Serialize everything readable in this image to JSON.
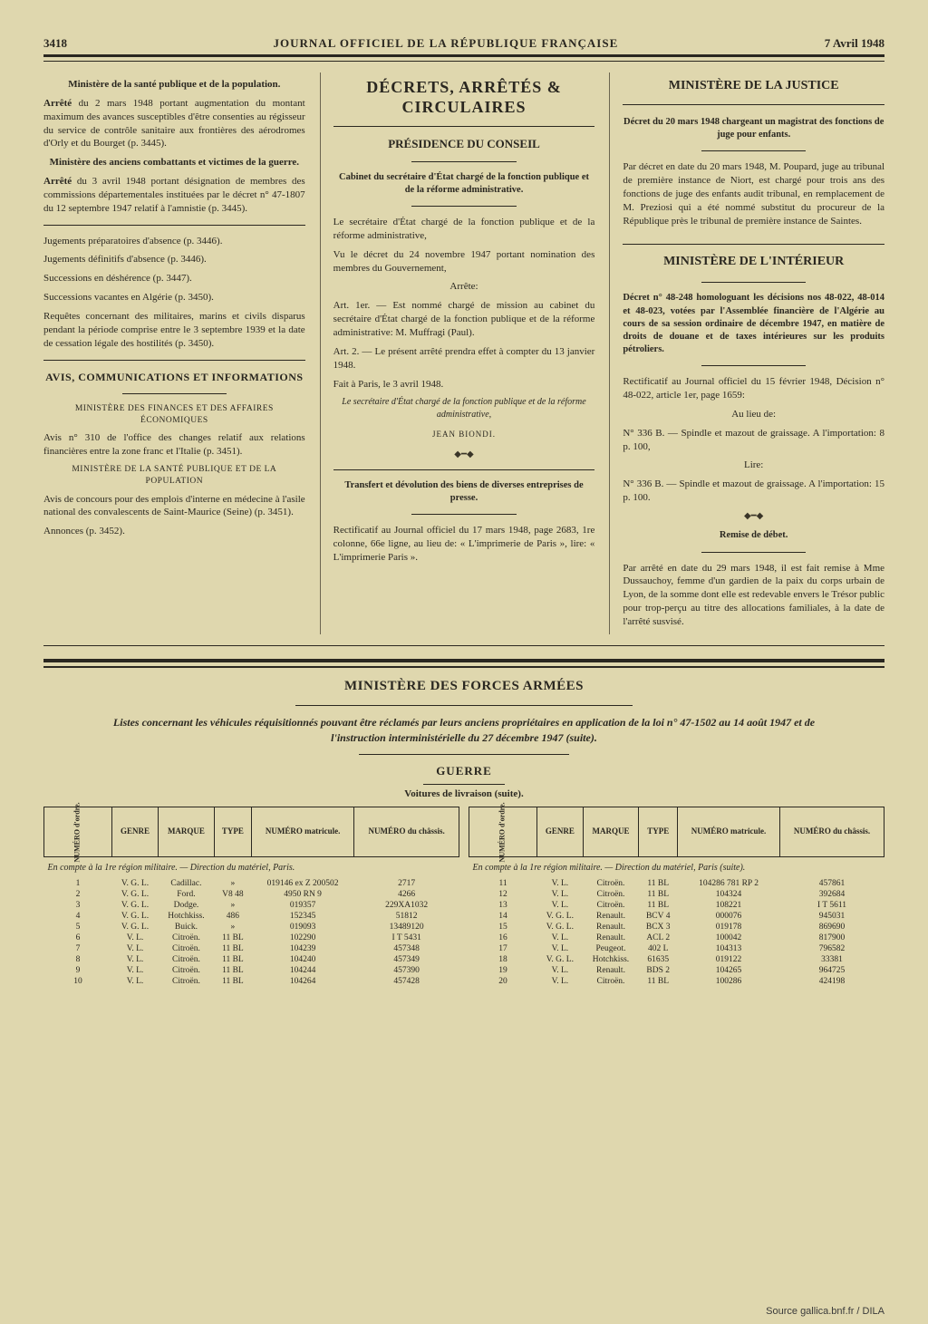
{
  "header": {
    "page_number": "3418",
    "journal_title": "JOURNAL OFFICIEL DE LA RÉPUBLIQUE FRANÇAISE",
    "date": "7 Avril 1948"
  },
  "col1": {
    "min1_title": "Ministère de la santé publique et de la population.",
    "arr1": "Arrêté du 2 mars 1948 portant augmentation du montant maximum des avances susceptibles d'être consenties au régisseur du service de contrôle sanitaire aux frontières des aérodromes d'Orly et du Bourget (p. 3445).",
    "min2_title": "Ministère des anciens combattants et victimes de la guerre.",
    "arr2": "Arrêté du 3 avril 1948 portant désignation de membres des commissions départementales instituées par le décret n° 47-1807 du 12 septembre 1947 relatif à l'amnistie (p. 3445).",
    "jug1": "Jugements préparatoires d'absence (p. 3446).",
    "jug2": "Jugements définitifs d'absence (p. 3446).",
    "succ1": "Successions en déshérence (p. 3447).",
    "succ2": "Successions vacantes en Algérie (p. 3450).",
    "req": "Requêtes concernant des militaires, marins et civils disparus pendant la période comprise entre le 3 septembre 1939 et la date de cessation légale des hostilités (p. 3450).",
    "avis_heading": "AVIS, COMMUNICATIONS ET INFORMATIONS",
    "min_fin": "MINISTÈRE DES FINANCES ET DES AFFAIRES ÉCONOMIQUES",
    "avis1": "Avis n° 310 de l'office des changes relatif aux relations financières entre la zone franc et l'Italie (p. 3451).",
    "min_sante": "MINISTÈRE DE LA SANTÉ PUBLIQUE ET DE LA POPULATION",
    "avis2": "Avis de concours pour des emplois d'interne en médecine à l'asile national des convalescents de Saint-Maurice (Seine) (p. 3451).",
    "annonces": "Annonces (p. 3452)."
  },
  "col2": {
    "big_title": "DÉCRETS, ARRÊTÉS & CIRCULAIRES",
    "pres_title": "PRÉSIDENCE DU CONSEIL",
    "cabinet": "Cabinet du secrétaire d'État chargé de la fonction publique et de la réforme administrative.",
    "p1": "Le secrétaire d'État chargé de la fonction publique et de la réforme administrative,",
    "p2": "Vu le décret du 24 novembre 1947 portant nomination des membres du Gouvernement,",
    "arrete": "Arrête:",
    "art1": "Art. 1er. — Est nommé chargé de mission au cabinet du secrétaire d'État chargé de la fonction publique et de la réforme administrative: M. Muffragi (Paul).",
    "art2": "Art. 2. — Le présent arrêté prendra effet à compter du 13 janvier 1948.",
    "fait": "Fait à Paris, le 3 avril 1948.",
    "sig": "Le secrétaire d'État chargé de la fonction publique et de la réforme administrative,",
    "sig_name": "JEAN BIONDI.",
    "transfert_title": "Transfert et dévolution des biens de diverses entreprises de presse.",
    "rectif": "Rectificatif au Journal officiel du 17 mars 1948, page 2683, 1re colonne, 66e ligne, au lieu de: « L'imprimerie de Paris », lire: « L'imprimerie Paris »."
  },
  "col3": {
    "justice_title": "MINISTÈRE DE LA JUSTICE",
    "decret_justice": "Décret du 20 mars 1948 chargeant un magistrat des fonctions de juge pour enfants.",
    "justice_para": "Par décret en date du 20 mars 1948, M. Poupard, juge au tribunal de première instance de Niort, est chargé pour trois ans des fonctions de juge des enfants audit tribunal, en remplacement de M. Preziosi qui a été nommé substitut du procureur de la République près le tribunal de première instance de Saintes.",
    "interieur_title": "MINISTÈRE DE L'INTÉRIEUR",
    "decret_int": "Décret n° 48-248 homologuant les décisions nos 48-022, 48-014 et 48-023, votées par l'Assemblée financière de l'Algérie au cours de sa session ordinaire de décembre 1947, en matière de droits de douane et de taxes intérieures sur les produits pétroliers.",
    "rectif_int": "Rectificatif au Journal officiel du 15 février 1948, Décision n° 48-022, article 1er, page 1659:",
    "au_lieu": "Au lieu de:",
    "n336a": "N° 336 B. — Spindle et mazout de graissage. A l'importation: 8 p. 100,",
    "lire": "Lire:",
    "n336b": "N° 336 B. — Spindle et mazout de graissage. A l'importation: 15 p. 100.",
    "remise_title": "Remise de débet.",
    "remise_para": "Par arrêté en date du 29 mars 1948, il est fait remise à Mme Dussauchoy, femme d'un gardien de la paix du corps urbain de Lyon, de la somme dont elle est redevable envers le Trésor public pour trop-perçu au titre des allocations familiales, à la date de l'arrêté susvisé."
  },
  "forces": {
    "title": "MINISTÈRE DES FORCES ARMÉES",
    "intro": "Listes concernant les véhicules réquisitionnés pouvant être réclamés par leurs anciens propriétaires en application de la loi n° 47-1502 au 14 août 1947 et de l'instruction interministérielle du 27 décembre 1947 (suite).",
    "guerre": "GUERRE",
    "voitures": "Voitures de livraison (suite)."
  },
  "table": {
    "headers": {
      "numero_ordre": "NUMÉRO d'ordre.",
      "genre": "GENRE",
      "marque": "MARQUE",
      "type": "TYPE",
      "numero_matricule": "NUMÉRO matricule.",
      "numero_chassis": "NUMÉRO du châssis."
    },
    "region_left": "En compte à la 1re région militaire. — Direction du matériel, Paris.",
    "region_right": "En compte à la 1re région militaire. — Direction du matériel, Paris (suite).",
    "rows_left": [
      [
        "1",
        "V. G. L.",
        "Cadillac.",
        "»",
        "019146 ex Z 200502",
        "2717"
      ],
      [
        "2",
        "V. G. L.",
        "Ford.",
        "V8 48",
        "4950 RN 9",
        "4266"
      ],
      [
        "3",
        "V. G. L.",
        "Dodge.",
        "»",
        "019357",
        "229XA1032"
      ],
      [
        "4",
        "V. G. L.",
        "Hotchkiss.",
        "486",
        "152345",
        "51812"
      ],
      [
        "5",
        "V. G. L.",
        "Buick.",
        "»",
        "019093",
        "13489120"
      ],
      [
        "6",
        "V. L.",
        "Citroën.",
        "11 BL",
        "102290",
        "I T 5431"
      ],
      [
        "7",
        "V. L.",
        "Citroën.",
        "11 BL",
        "104239",
        "457348"
      ],
      [
        "8",
        "V. L.",
        "Citroën.",
        "11 BL",
        "104240",
        "457349"
      ],
      [
        "9",
        "V. L.",
        "Citroën.",
        "11 BL",
        "104244",
        "457390"
      ],
      [
        "10",
        "V. L.",
        "Citroën.",
        "11 BL",
        "104264",
        "457428"
      ]
    ],
    "rows_right": [
      [
        "11",
        "V. L.",
        "Citroën.",
        "11 BL",
        "104286 781 RP 2",
        "457861"
      ],
      [
        "12",
        "V. L.",
        "Citroën.",
        "11 BL",
        "104324",
        "392684"
      ],
      [
        "13",
        "V. L.",
        "Citroën.",
        "11 BL",
        "108221",
        "I T 5611"
      ],
      [
        "14",
        "V. G. L.",
        "Renault.",
        "BCV 4",
        "000076",
        "945031"
      ],
      [
        "15",
        "V. G. L.",
        "Renault.",
        "BCX 3",
        "019178",
        "869690"
      ],
      [
        "16",
        "V. L.",
        "Renault.",
        "ACL 2",
        "100042",
        "817900"
      ],
      [
        "17",
        "V. L.",
        "Peugeot.",
        "402 L",
        "104313",
        "796582"
      ],
      [
        "18",
        "V. G. L.",
        "Hotchkiss.",
        "61635",
        "019122",
        "33381"
      ],
      [
        "19",
        "V. L.",
        "Renault.",
        "BDS 2",
        "104265",
        "964725"
      ],
      [
        "20",
        "V. L.",
        "Citroën.",
        "11 BL",
        "100286",
        "424198"
      ]
    ]
  },
  "source": "Source gallica.bnf.fr / DILA"
}
